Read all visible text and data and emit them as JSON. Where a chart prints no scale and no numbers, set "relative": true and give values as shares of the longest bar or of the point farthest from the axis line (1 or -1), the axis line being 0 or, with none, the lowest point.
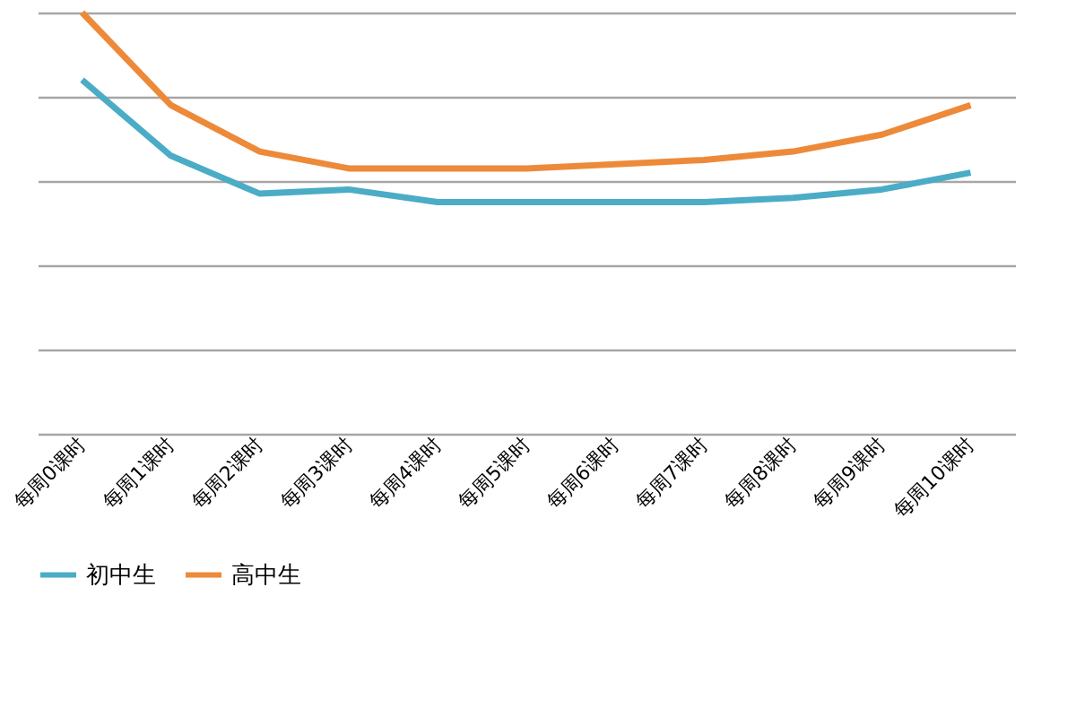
{
  "chart_data": {
    "type": "line",
    "relative": true,
    "grid": "y",
    "legend": "bottom",
    "marker": "none",
    "line_style": "solid",
    "categories": [
      "每周0课时",
      "每周1课时",
      "每周2课时",
      "每周3课时",
      "每周4课时",
      "每周5课时",
      "每周6课时",
      "每周7课时",
      "每周8课时",
      "每周9课时",
      "每周10课时"
    ],
    "series": [
      {
        "name": "初中生",
        "color": "#4bacc6",
        "values": [
          0.84,
          0.66,
          0.57,
          0.58,
          0.55,
          0.55,
          0.55,
          0.55,
          0.56,
          0.58,
          0.62
        ]
      },
      {
        "name": "高中生",
        "color": "#ed8a3a",
        "values": [
          1,
          0.78,
          0.67,
          0.63,
          0.63,
          0.63,
          0.64,
          0.65,
          0.67,
          0.71,
          0.78
        ]
      }
    ]
  }
}
